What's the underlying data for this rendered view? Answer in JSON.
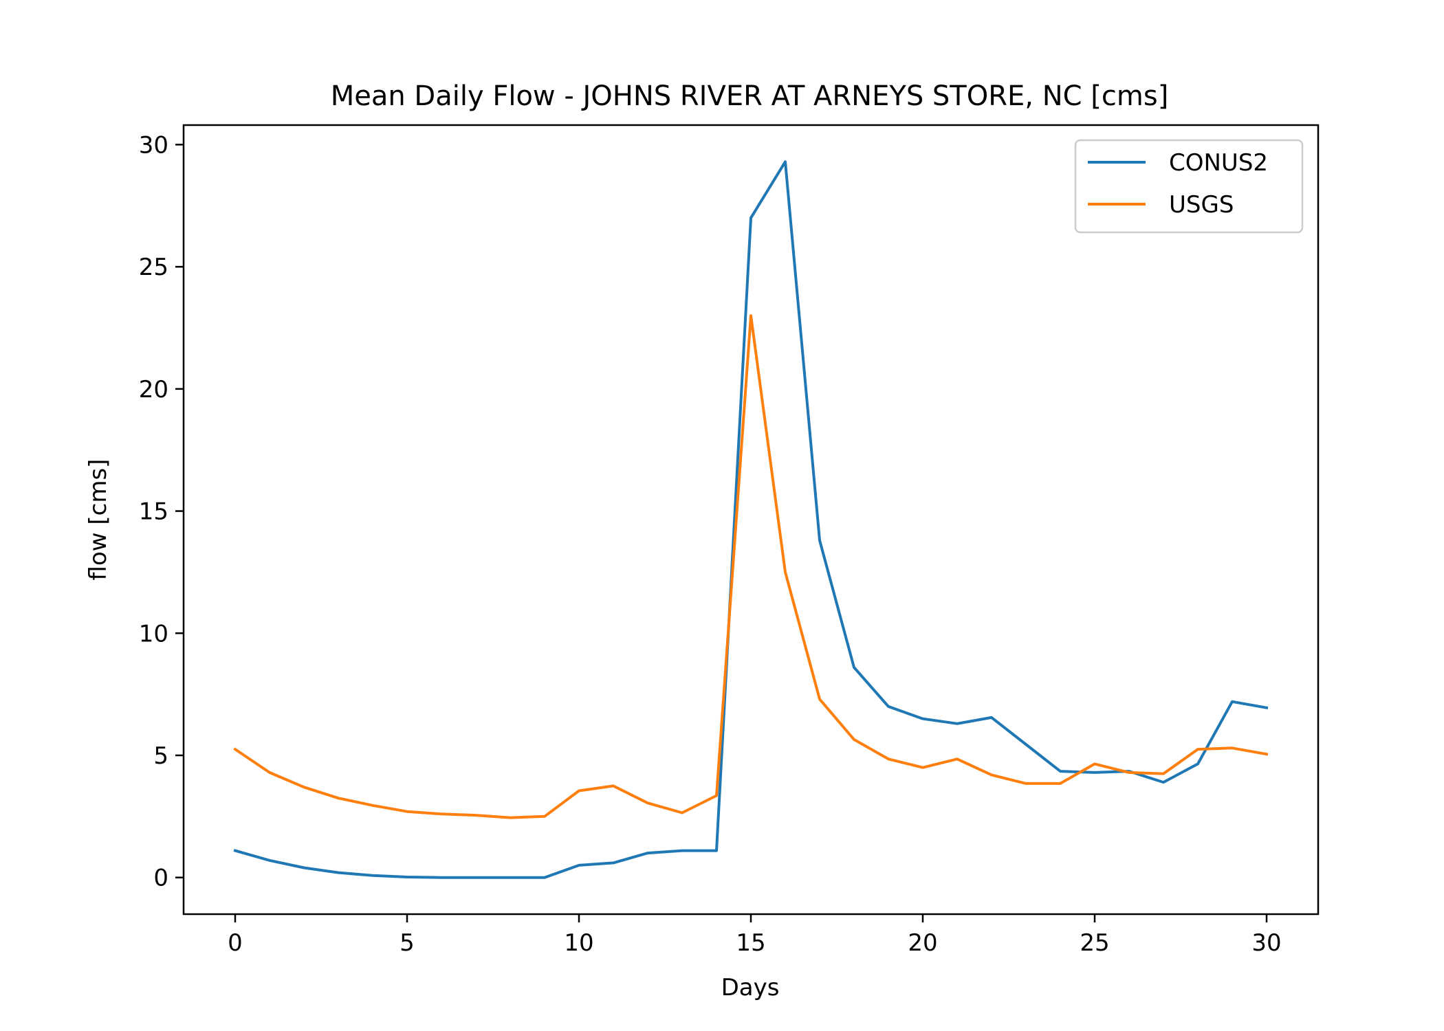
{
  "chart_data": {
    "type": "line",
    "title": "Mean Daily Flow - JOHNS RIVER AT ARNEYS STORE, NC [cms]",
    "xlabel": "Days",
    "ylabel": "flow [cms]",
    "xlim": [
      -1.5,
      31.5
    ],
    "ylim": [
      -1.5,
      30.8
    ],
    "xticks": [
      0,
      5,
      10,
      15,
      20,
      25,
      30
    ],
    "xtick_labels": [
      "0",
      "5",
      "10",
      "15",
      "20",
      "25",
      "30"
    ],
    "yticks": [
      0,
      5,
      10,
      15,
      20,
      25,
      30
    ],
    "ytick_labels": [
      "0",
      "5",
      "10",
      "15",
      "20",
      "25",
      "30"
    ],
    "grid": false,
    "legend_position": "top-right",
    "x": [
      0,
      1,
      2,
      3,
      4,
      5,
      6,
      7,
      8,
      9,
      10,
      11,
      12,
      13,
      14,
      15,
      16,
      17,
      18,
      19,
      20,
      21,
      22,
      23,
      24,
      25,
      26,
      27,
      28,
      29,
      30
    ],
    "series": [
      {
        "name": "CONUS2",
        "color": "#1f77b4",
        "values": [
          1.1,
          0.7,
          0.4,
          0.2,
          0.08,
          0.02,
          0.0,
          0.0,
          0.0,
          0.0,
          0.5,
          0.6,
          1.0,
          1.1,
          1.1,
          27.0,
          29.3,
          13.8,
          8.6,
          7.0,
          6.5,
          6.3,
          6.55,
          5.45,
          4.35,
          4.3,
          4.35,
          3.9,
          4.65,
          7.2,
          6.95
        ]
      },
      {
        "name": "USGS",
        "color": "#ff7f0e",
        "values": [
          5.25,
          4.3,
          3.7,
          3.25,
          2.95,
          2.7,
          2.6,
          2.55,
          2.45,
          2.5,
          3.55,
          3.75,
          3.05,
          2.65,
          3.35,
          23.0,
          12.5,
          7.3,
          5.65,
          4.85,
          4.5,
          4.85,
          4.2,
          3.85,
          3.85,
          4.65,
          4.3,
          4.25,
          5.25,
          5.3,
          5.05
        ]
      }
    ]
  }
}
